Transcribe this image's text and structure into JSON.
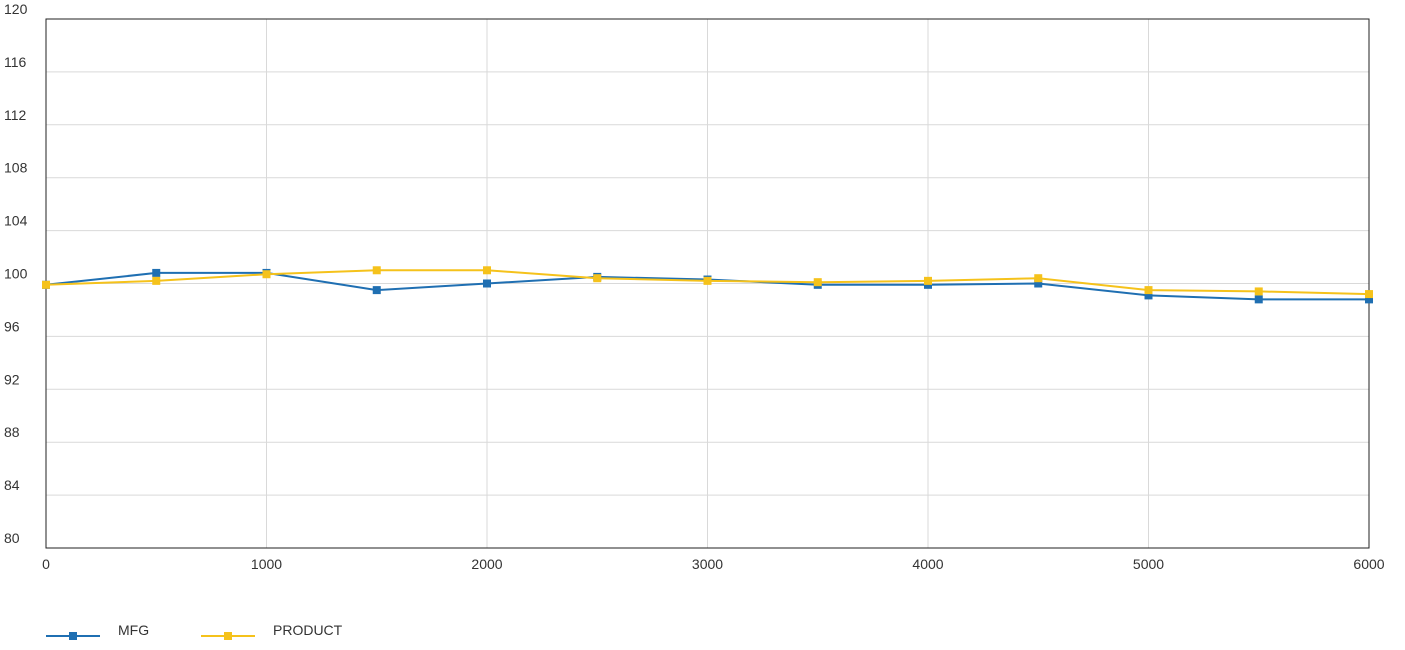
{
  "chart_data": {
    "type": "line",
    "title": "",
    "xlabel": "",
    "ylabel": "",
    "xlim": [
      0,
      6000
    ],
    "ylim": [
      80,
      120
    ],
    "x_ticks": [
      0,
      1000,
      2000,
      3000,
      4000,
      5000,
      6000
    ],
    "y_ticks": [
      80,
      84,
      88,
      92,
      96,
      100,
      104,
      108,
      112,
      116,
      120
    ],
    "grid": true,
    "legend_position": "bottom-left",
    "x": [
      0,
      500,
      1000,
      1500,
      2000,
      2500,
      3000,
      3500,
      4000,
      4500,
      5000,
      5500,
      6000
    ],
    "series": [
      {
        "name": "MFG",
        "color": "#1f6fb2",
        "marker": "square",
        "values": [
          99.9,
          100.8,
          100.8,
          99.5,
          100.0,
          100.5,
          100.3,
          99.9,
          99.9,
          100.0,
          99.1,
          98.8,
          98.8
        ]
      },
      {
        "name": "PRODUCT",
        "color": "#f5c21b",
        "marker": "square",
        "values": [
          99.9,
          100.2,
          100.7,
          101.0,
          101.0,
          100.4,
          100.2,
          100.1,
          100.2,
          100.4,
          99.5,
          99.4,
          99.2
        ]
      }
    ]
  }
}
